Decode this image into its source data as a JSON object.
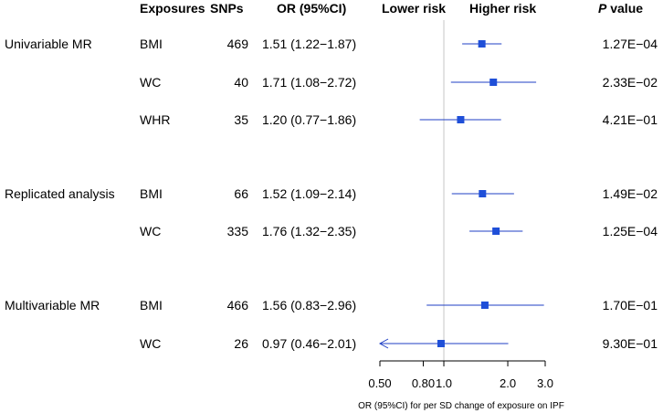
{
  "headers": {
    "exposures": "Exposures",
    "snps": "SNPs",
    "or": "OR (95%CI)",
    "lower": "Lower risk",
    "higher": "Higher risk",
    "p_italic": "P",
    "p_rest": " value"
  },
  "groups": [
    {
      "label": "Univariable MR"
    },
    {
      "label": "Replicated analysis"
    },
    {
      "label": "Multivariable MR"
    }
  ],
  "rows": [
    {
      "group": 0,
      "exposure": "BMI",
      "snps": "469",
      "or_text": "1.51 (1.22−1.87)",
      "p": "1.27E−04"
    },
    {
      "group": 0,
      "exposure": "WC",
      "snps": "40",
      "or_text": "1.71 (1.08−2.72)",
      "p": "2.33E−02"
    },
    {
      "group": 0,
      "exposure": "WHR",
      "snps": "35",
      "or_text": "1.20 (0.77−1.86)",
      "p": "4.21E−01"
    },
    {
      "group": 1,
      "exposure": "BMI",
      "snps": "66",
      "or_text": "1.52 (1.09−2.14)",
      "p": "1.49E−02"
    },
    {
      "group": 1,
      "exposure": "WC",
      "snps": "335",
      "or_text": "1.76 (1.32−2.35)",
      "p": "1.25E−04"
    },
    {
      "group": 2,
      "exposure": "BMI",
      "snps": "466",
      "or_text": "1.56 (0.83−2.96)",
      "p": "1.70E−01"
    },
    {
      "group": 2,
      "exposure": "WC",
      "snps": "26",
      "or_text": "0.97 (0.46−2.01)",
      "p": "9.30E−01"
    }
  ],
  "chart_data": {
    "type": "forest",
    "scale": "log",
    "xlim": [
      0.5,
      3.0
    ],
    "reference_line": 1.0,
    "xticks": [
      0.5,
      0.8,
      1.0,
      2.0,
      3.0
    ],
    "xtick_labels": [
      "0.50",
      "0.80",
      "1.0",
      "2.0",
      "3.0"
    ],
    "xlabel": "OR (95%CI) for per SD change of exposure on IPF",
    "marker_color": "#1f4fd8",
    "line_color": "#1f3fc4",
    "series": [
      {
        "name": "Univariable MR BMI",
        "or": 1.51,
        "lo": 1.22,
        "hi": 1.87
      },
      {
        "name": "Univariable MR WC",
        "or": 1.71,
        "lo": 1.08,
        "hi": 2.72
      },
      {
        "name": "Univariable MR WHR",
        "or": 1.2,
        "lo": 0.77,
        "hi": 1.86
      },
      {
        "name": "Replicated analysis BMI",
        "or": 1.52,
        "lo": 1.09,
        "hi": 2.14
      },
      {
        "name": "Replicated analysis WC",
        "or": 1.76,
        "lo": 1.32,
        "hi": 2.35
      },
      {
        "name": "Multivariable MR BMI",
        "or": 1.56,
        "lo": 0.83,
        "hi": 2.96
      },
      {
        "name": "Multivariable MR WC",
        "or": 0.97,
        "lo": 0.46,
        "hi": 2.01
      }
    ]
  }
}
